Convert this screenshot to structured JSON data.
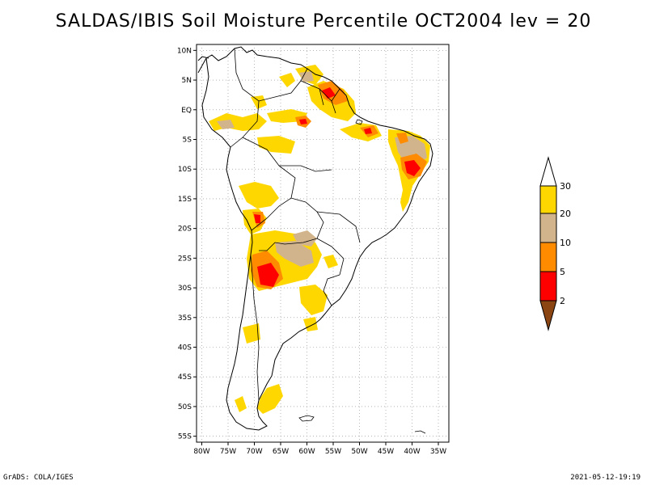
{
  "title": "SALDAS/IBIS Soil Moisture Percentile OCT2004 lev = 20",
  "footer": {
    "left": "GrADS: COLA/IGES",
    "right": "2021-05-12-19:19"
  },
  "map": {
    "lat_ticks": [
      "10N",
      "5N",
      "EQ",
      "5S",
      "10S",
      "15S",
      "20S",
      "25S",
      "30S",
      "35S",
      "40S",
      "45S",
      "50S",
      "55S"
    ],
    "lon_ticks": [
      "80W",
      "75W",
      "70W",
      "65W",
      "60W",
      "55W",
      "50W",
      "45W",
      "40W",
      "35W"
    ],
    "lon_range": [
      -81,
      -33
    ],
    "lat_range": [
      -56,
      11
    ],
    "grid": true
  },
  "colorbar": {
    "labels": [
      "2",
      "5",
      "10",
      "20",
      "30"
    ],
    "colors": {
      "below_2": "#8b4513",
      "p2_5": "#ff0000",
      "p5_10": "#ff8c00",
      "p10_20": "#d2b48c",
      "p20_30": "#ffd700",
      "above_30": "#ffffff"
    }
  },
  "region_colors": {
    "yellow": "#ffd700",
    "orange": "#ff8c00",
    "tan": "#d2b48c",
    "red": "#ff0000"
  }
}
